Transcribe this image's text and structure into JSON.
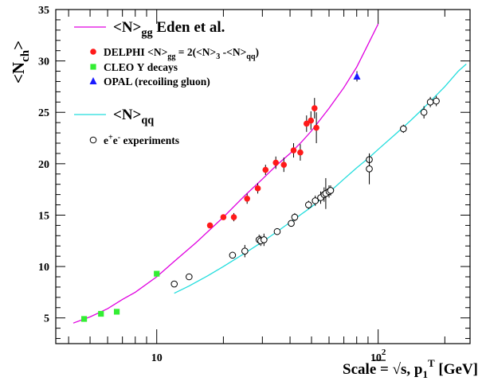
{
  "chart_data": {
    "type": "scatter",
    "x_scale": "log",
    "y_scale": "linear",
    "xlim": [
      3.5,
      260
    ],
    "ylim": [
      2.5,
      35
    ],
    "x_major_ticks": [
      {
        "value": 10,
        "label": "10",
        "exp": ""
      },
      {
        "value": 100,
        "label": "10",
        "exp": "2"
      }
    ],
    "y_ticks": [
      5,
      10,
      15,
      20,
      25,
      30,
      35
    ],
    "ylabel": {
      "main": "<N",
      "sub": "ch",
      "close": ">"
    },
    "xlabel": {
      "pre": "Scale = ",
      "sqrt": "√s, p",
      "sub": "1",
      "sup": "T",
      "post": " [GeV]"
    },
    "legend": [
      {
        "kind": "line",
        "color": "#e000e0",
        "label": "<N>",
        "sub": "gg",
        "rest": " Eden et al.",
        "size": "large"
      },
      {
        "kind": "circle",
        "color": "#ff1a1a",
        "label": "DELPHI <N>",
        "sub": "gg",
        "rest": " = 2(<N>",
        "sub2": "3",
        "rest2": " -<N>",
        "sub3": "qq",
        "rest3": ")",
        "size": "small"
      },
      {
        "kind": "square",
        "color": "#33ee33",
        "label": "CLEO Υ decays",
        "size": "small"
      },
      {
        "kind": "triangle",
        "color": "#1a1aff",
        "label": "OPAL (recoiling gluon)",
        "size": "small"
      },
      {
        "kind": "line",
        "color": "#22dddd",
        "label": "<N>",
        "sub": "qq",
        "rest": "",
        "size": "large"
      },
      {
        "kind": "open-circle",
        "color": "#000000",
        "label": "e",
        "sup": "+",
        "mid": "e",
        "sup2": "-",
        "rest": " experiments",
        "size": "small"
      }
    ],
    "series": [
      {
        "name": "<N>gg Eden et al.",
        "kind": "line",
        "color": "#e000e0",
        "points": [
          [
            4.2,
            4.5
          ],
          [
            5,
            5.1
          ],
          [
            6,
            5.9
          ],
          [
            7,
            6.8
          ],
          [
            8,
            7.5
          ],
          [
            10,
            9.0
          ],
          [
            12,
            10.5
          ],
          [
            15,
            12.3
          ],
          [
            20,
            14.8
          ],
          [
            25,
            16.9
          ],
          [
            30,
            18.5
          ],
          [
            35,
            19.9
          ],
          [
            40,
            21.0
          ],
          [
            45,
            22.1
          ],
          [
            50,
            23.2
          ],
          [
            60,
            25.4
          ],
          [
            70,
            27.4
          ],
          [
            80,
            29.4
          ],
          [
            90,
            31.6
          ],
          [
            100,
            33.6
          ]
        ]
      },
      {
        "name": "<N>qq",
        "kind": "line",
        "color": "#22dddd",
        "points": [
          [
            12,
            7.4
          ],
          [
            14,
            8.1
          ],
          [
            17,
            9.1
          ],
          [
            20,
            10.0
          ],
          [
            25,
            11.3
          ],
          [
            30,
            12.4
          ],
          [
            35,
            13.4
          ],
          [
            40,
            14.3
          ],
          [
            50,
            15.8
          ],
          [
            60,
            17.2
          ],
          [
            70,
            18.5
          ],
          [
            80,
            19.6
          ],
          [
            91,
            20.6
          ],
          [
            100,
            21.4
          ],
          [
            120,
            22.9
          ],
          [
            140,
            24.2
          ],
          [
            160,
            25.4
          ],
          [
            180,
            26.5
          ],
          [
            200,
            27.5
          ],
          [
            230,
            29.0
          ],
          [
            250,
            29.7
          ]
        ]
      },
      {
        "name": "DELPHI",
        "kind": "circle",
        "color": "#ff1a1a",
        "points": [
          [
            17.4,
            14.0,
            0.15
          ],
          [
            20,
            14.8,
            0.2
          ],
          [
            22.3,
            14.8,
            0.4
          ],
          [
            25.6,
            16.6,
            0.5
          ],
          [
            28.6,
            17.6,
            0.5
          ],
          [
            31,
            19.4,
            0.5
          ],
          [
            34.5,
            20.1,
            0.6
          ],
          [
            37.5,
            19.9,
            0.7
          ],
          [
            41.5,
            21.3,
            0.7
          ],
          [
            44.5,
            21.1,
            0.8
          ],
          [
            47.5,
            23.9,
            0.8
          ],
          [
            49.7,
            24.2,
            0.9
          ],
          [
            51.6,
            25.4,
            1.0
          ],
          [
            52.6,
            23.5,
            1.5
          ]
        ]
      },
      {
        "name": "CLEO",
        "kind": "square",
        "color": "#33ee33",
        "points": [
          [
            4.7,
            4.9,
            0
          ],
          [
            5.6,
            5.4,
            0
          ],
          [
            6.6,
            5.6,
            0
          ],
          [
            10,
            9.3,
            0
          ]
        ]
      },
      {
        "name": "OPAL",
        "kind": "triangle",
        "color": "#1a1aff",
        "points": [
          [
            80.2,
            28.5,
            0.5
          ]
        ]
      },
      {
        "name": "e+e- experiments",
        "kind": "open-circle",
        "color": "#000000",
        "points": [
          [
            12,
            8.3,
            0.1
          ],
          [
            14,
            9.0,
            0.3
          ],
          [
            22,
            11.1,
            0.3
          ],
          [
            25,
            11.5,
            0.6
          ],
          [
            29,
            12.6,
            0.5
          ],
          [
            29.5,
            12.5,
            0.5
          ],
          [
            30.5,
            12.6,
            0.6
          ],
          [
            35,
            13.4,
            0.2
          ],
          [
            40.5,
            14.2,
            0.3
          ],
          [
            42,
            14.8,
            0.4
          ],
          [
            48.5,
            16.0,
            0.4
          ],
          [
            52,
            16.4,
            0.5
          ],
          [
            55,
            16.7,
            0.6
          ],
          [
            57,
            17.0,
            0.7
          ],
          [
            58,
            17.1,
            1.5
          ],
          [
            60,
            17.3,
            0.6
          ],
          [
            61,
            17.4,
            0.5
          ],
          [
            91.2,
            20.4,
            0.6
          ],
          [
            91.2,
            19.5,
            1.5
          ],
          [
            130,
            23.4,
            0.4
          ],
          [
            161,
            25.0,
            0.6
          ],
          [
            172,
            26.0,
            0.5
          ],
          [
            183,
            26.1,
            0.5
          ]
        ]
      }
    ]
  }
}
